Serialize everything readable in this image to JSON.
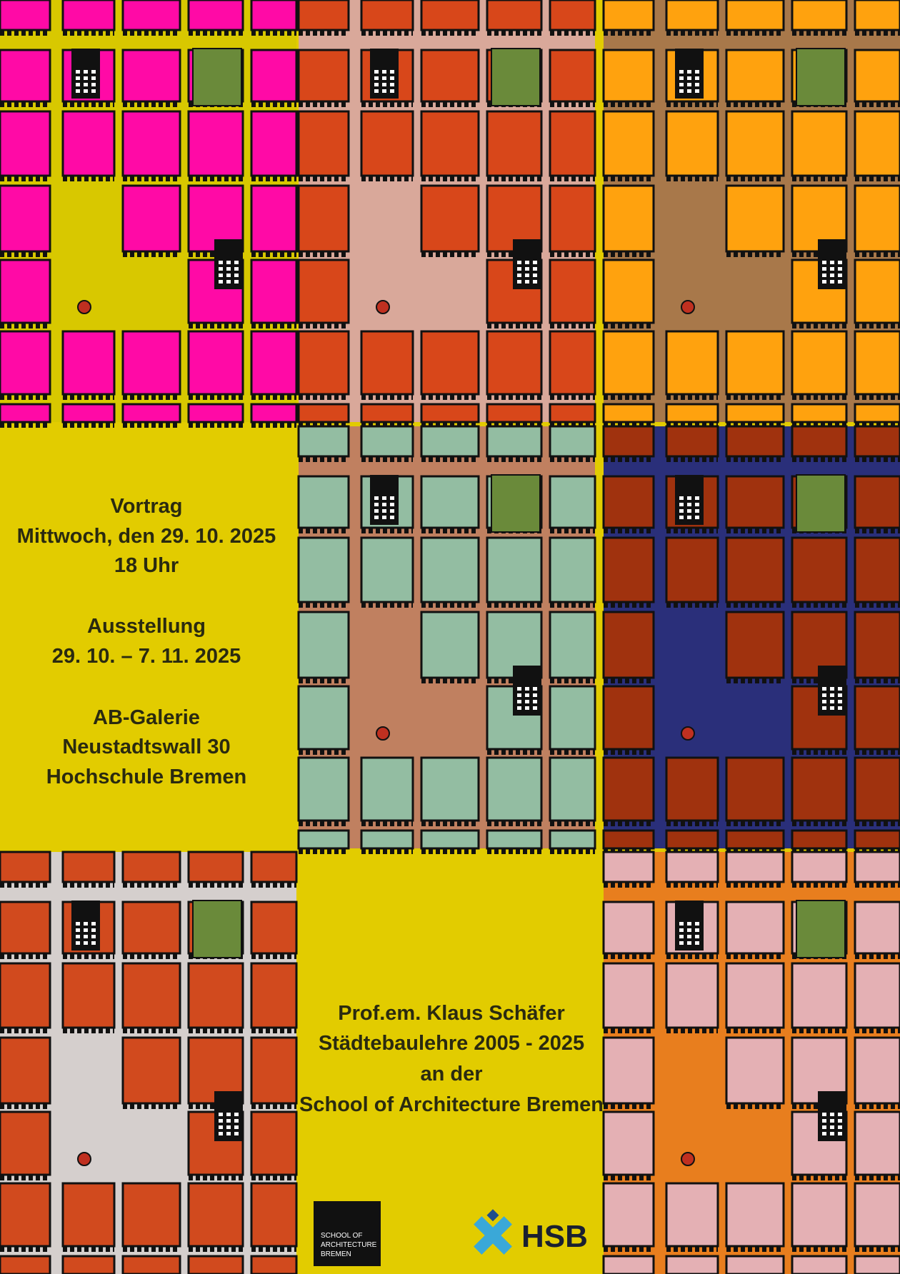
{
  "info": {
    "lecture": [
      "Vortrag",
      "Mittwoch, den 29. 10. 2025",
      "18 Uhr"
    ],
    "exhibition": [
      "Ausstellung",
      "29. 10. – 7. 11. 2025"
    ],
    "venue": [
      "AB-Galerie",
      "Neustadtswall 30",
      "Hochschule Bremen"
    ]
  },
  "credit": {
    "lines": [
      "Prof.em. Klaus Schäfer",
      "Städtebaulehre 2005 - 2025",
      "an der",
      "School of Architecture Bremen"
    ]
  },
  "logos": {
    "school": [
      "SCHOOL OF",
      "ARCHITECTURE",
      "BREMEN"
    ],
    "hsb": "HSB"
  }
}
